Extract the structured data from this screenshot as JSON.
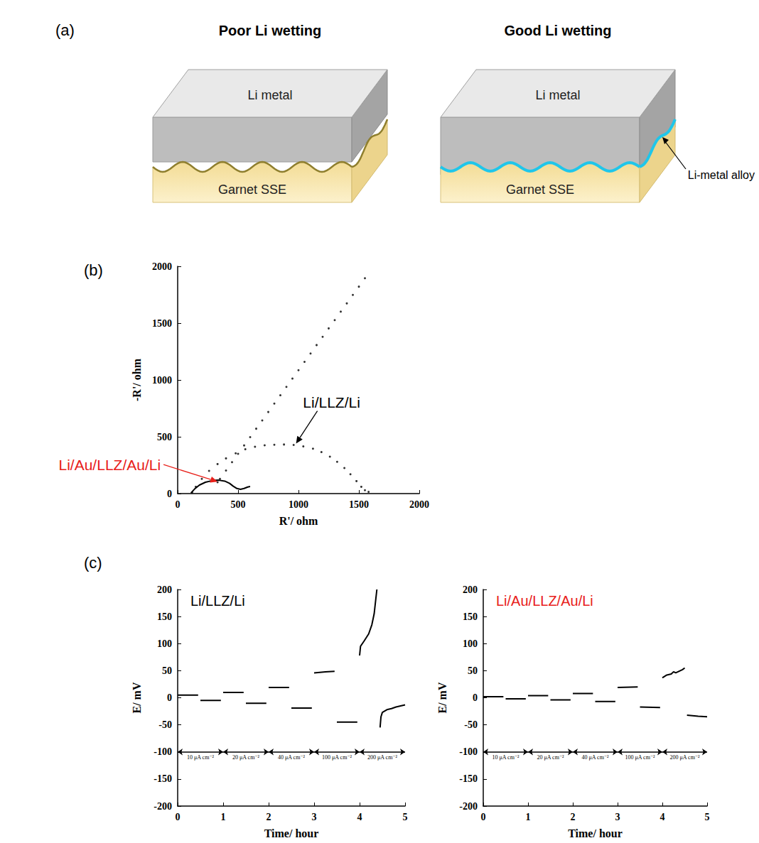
{
  "panel_labels": [
    "(a)",
    "(b)",
    "(c)"
  ],
  "diagram": {
    "panels": [
      {
        "title": "Poor Li wetting",
        "top_layer": "Li metal",
        "bottom_layer": "Garnet SSE",
        "wetting": "poor"
      },
      {
        "title": "Good Li wetting",
        "top_layer": "Li metal",
        "bottom_layer": "Garnet SSE",
        "interlayer": "Li-metal alloy",
        "wetting": "good"
      }
    ]
  },
  "chart_data": [
    {
      "type": "scatter",
      "xlabel": "R'/ ohm",
      "ylabel": "-R'/ ohm",
      "xlim": [
        0,
        2000
      ],
      "ylim": [
        0,
        2000
      ],
      "xticks": [
        0,
        500,
        1000,
        1500,
        2000
      ],
      "yticks": [
        0,
        500,
        1000,
        1500,
        2000
      ],
      "grid": false,
      "series": [
        {
          "name": "Li/LLZ/Li",
          "type": "scatter",
          "marker": "dot",
          "color": "#000000",
          "x": [
            120,
            150,
            200,
            260,
            330,
            400,
            480,
            560,
            640,
            720,
            800,
            880,
            960,
            1040,
            1120,
            1190,
            1260,
            1320,
            1380,
            1430,
            1480,
            1520,
            1550,
            1580
          ],
          "values": [
            10,
            60,
            130,
            200,
            260,
            310,
            355,
            390,
            412,
            425,
            430,
            432,
            428,
            415,
            395,
            365,
            325,
            280,
            225,
            170,
            110,
            60,
            30,
            15
          ]
        },
        {
          "name": "Li/Au/LLZ/Au/Li",
          "type": "line",
          "line_style": "solid",
          "color": "#000000",
          "x": [
            110,
            140,
            180,
            230,
            290,
            340,
            390,
            430,
            460,
            490,
            520,
            550,
            580,
            600
          ],
          "values": [
            5,
            40,
            75,
            100,
            115,
            118,
            110,
            90,
            65,
            45,
            38,
            45,
            58,
            62
          ]
        },
        {
          "type": "scatter",
          "marker": "dot",
          "color": "#000000",
          "x": [
            330,
            350,
            400,
            450,
            500,
            550,
            600,
            650,
            700,
            750,
            800,
            850,
            900,
            950,
            1000,
            1050,
            1100,
            1150,
            1200,
            1250,
            1300,
            1350,
            1400,
            1450,
            1500,
            1550
          ],
          "values": [
            100,
            129,
            203,
            277,
            350,
            424,
            497,
            571,
            644,
            718,
            792,
            865,
            939,
            1012,
            1086,
            1159,
            1233,
            1307,
            1380,
            1454,
            1527,
            1601,
            1674,
            1748,
            1821,
            1895
          ]
        }
      ],
      "annotations": [
        {
          "text": "Li/LLZ/Li",
          "color": "#000000"
        },
        {
          "text": "Li/Au/LLZ/Au/Li",
          "color": "#e8201a"
        }
      ]
    },
    {
      "type": "line",
      "xlabel": "Time/ hour",
      "ylabel": "E/ mV",
      "xlim": [
        0,
        5
      ],
      "ylim": [
        -200,
        200
      ],
      "xticks": [
        0,
        1,
        2,
        3,
        4,
        5
      ],
      "yticks": [
        -200,
        -150,
        -100,
        -50,
        0,
        50,
        100,
        150,
        200
      ],
      "grid": false,
      "series": [
        {
          "type": "line",
          "line_style": "solid",
          "color": "#000000",
          "x": [
            0,
            0.45,
            0.47,
            0.5,
            0.95,
            0.97,
            1.0,
            1.45,
            1.47,
            1.5,
            1.95,
            1.97,
            2.0,
            2.45,
            2.47,
            2.5,
            2.95,
            2.97,
            3.0,
            3.25,
            3.45,
            3.47,
            3.5,
            3.95,
            3.97,
            4.0,
            4.02,
            4.1,
            4.2,
            4.27,
            4.32,
            4.36,
            4.38,
            4.4,
            4.45,
            4.47,
            4.5,
            4.6,
            4.7,
            4.8,
            4.9,
            5.0
          ],
          "values": [
            5,
            5,
            null,
            -5,
            -5,
            null,
            10,
            10,
            null,
            -10,
            -10,
            null,
            19,
            19,
            null,
            -19,
            -19,
            null,
            46,
            48,
            49,
            null,
            -45,
            -45,
            null,
            78,
            95,
            105,
            118,
            135,
            155,
            185,
            200,
            null,
            -55,
            -35,
            -27,
            -22,
            -20,
            -17,
            -15,
            -13
          ]
        }
      ],
      "annotations": [
        {
          "text": "Li/LLZ/Li",
          "color": "#000000"
        }
      ],
      "current_steps": [
        {
          "label": "10 μA cm⁻²",
          "from": 0,
          "to": 1,
          "y": -100
        },
        {
          "label": "20 μA cm⁻²",
          "from": 1,
          "to": 2,
          "y": -100
        },
        {
          "label": "40 μA cm⁻²",
          "from": 2,
          "to": 3,
          "y": -100
        },
        {
          "label": "100 μA cm⁻²",
          "from": 3,
          "to": 4,
          "y": -100
        },
        {
          "label": "200 μA cm⁻²",
          "from": 4,
          "to": 5,
          "y": -100
        }
      ]
    },
    {
      "type": "line",
      "xlabel": "Time/ hour",
      "ylabel": "E/ mV",
      "xlim": [
        0,
        5
      ],
      "ylim": [
        -200,
        200
      ],
      "xticks": [
        0,
        1,
        2,
        3,
        4,
        5
      ],
      "yticks": [
        -200,
        -150,
        -100,
        -50,
        0,
        50,
        100,
        150,
        200
      ],
      "grid": false,
      "series": [
        {
          "type": "line",
          "line_style": "solid",
          "color": "#000000",
          "x": [
            0,
            0.45,
            0.47,
            0.5,
            0.95,
            0.97,
            1.0,
            1.45,
            1.47,
            1.5,
            1.95,
            1.97,
            2.0,
            2.45,
            2.47,
            2.5,
            2.95,
            2.97,
            3.0,
            3.45,
            3.47,
            3.5,
            3.95,
            3.97,
            4.0,
            4.1,
            4.2,
            4.25,
            4.3,
            4.4,
            4.45,
            4.5,
            4.52,
            4.55,
            4.8,
            5.0
          ],
          "values": [
            2,
            2,
            null,
            -2,
            -2,
            null,
            4,
            4,
            null,
            -4,
            -4,
            null,
            8,
            8,
            null,
            -7,
            -7,
            null,
            19,
            20,
            null,
            -17,
            -18,
            null,
            37,
            42,
            44,
            48,
            46,
            50,
            52,
            55,
            null,
            -32,
            -34,
            -35
          ]
        }
      ],
      "annotations": [
        {
          "text": "Li/Au/LLZ/Au/Li",
          "color": "#e8201a"
        }
      ],
      "current_steps": [
        {
          "label": "10 μA cm⁻²",
          "from": 0,
          "to": 1,
          "y": -100
        },
        {
          "label": "20 μA cm⁻²",
          "from": 1,
          "to": 2,
          "y": -100
        },
        {
          "label": "40 μA cm⁻²",
          "from": 2,
          "to": 3,
          "y": -100
        },
        {
          "label": "100 μA cm⁻²",
          "from": 3,
          "to": 4,
          "y": -100
        },
        {
          "label": "200 μA cm⁻²",
          "from": 4,
          "to": 5,
          "y": -100
        }
      ]
    }
  ]
}
